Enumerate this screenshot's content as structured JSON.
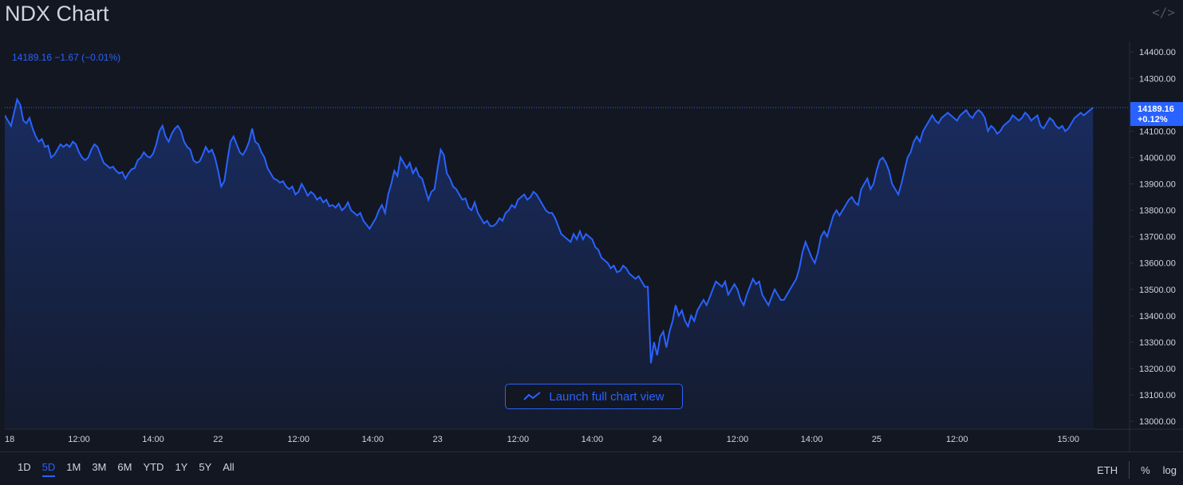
{
  "title": "NDX Chart",
  "embed_icon": "code-embed-icon",
  "legend_text": "14189.16 −1.67 (−0.01%)",
  "last_price": "14189.16",
  "last_change": "+0.12%",
  "launch_label": "Launch full chart view",
  "ranges": [
    "1D",
    "5D",
    "1M",
    "3M",
    "6M",
    "YTD",
    "1Y",
    "5Y",
    "All"
  ],
  "active_range": "5D",
  "right_options": {
    "eth": "ETH",
    "percent": "%",
    "log": "log"
  },
  "colors": {
    "line": "#2962ff",
    "background": "#131722",
    "grid": "#2a2e39",
    "text": "#d1d4dc"
  },
  "chart_data": {
    "type": "area",
    "yticks": [
      13000,
      13100,
      13200,
      13300,
      13400,
      13500,
      13600,
      13700,
      13800,
      13900,
      14000,
      14100,
      14200,
      14300,
      14400
    ],
    "yrange": [
      12970,
      14440
    ],
    "xticks": [
      {
        "label": "18",
        "i": 0
      },
      {
        "label": "12:00",
        "i": 24
      },
      {
        "label": "14:00",
        "i": 48
      },
      {
        "label": "22",
        "i": 69
      },
      {
        "label": "12:00",
        "i": 95
      },
      {
        "label": "14:00",
        "i": 119
      },
      {
        "label": "23",
        "i": 140
      },
      {
        "label": "12:00",
        "i": 166
      },
      {
        "label": "14:00",
        "i": 190
      },
      {
        "label": "24",
        "i": 211
      },
      {
        "label": "12:00",
        "i": 237
      },
      {
        "label": "14:00",
        "i": 261
      },
      {
        "label": "25",
        "i": 282
      },
      {
        "label": "12:00",
        "i": 308
      },
      {
        "label": "15:00",
        "i": 344
      }
    ],
    "x_count": 355,
    "values": [
      14160,
      14140,
      14120,
      14170,
      14220,
      14200,
      14140,
      14130,
      14150,
      14110,
      14080,
      14060,
      14070,
      14040,
      14045,
      14000,
      14010,
      14030,
      14050,
      14040,
      14050,
      14040,
      14060,
      14050,
      14020,
      14000,
      13990,
      14000,
      14030,
      14050,
      14040,
      14010,
      13980,
      13970,
      13960,
      13965,
      13950,
      13940,
      13945,
      13920,
      13940,
      13955,
      13960,
      13990,
      14000,
      14020,
      14005,
      14000,
      14015,
      14050,
      14100,
      14120,
      14080,
      14060,
      14090,
      14110,
      14120,
      14100,
      14060,
      14040,
      14030,
      13990,
      13980,
      13985,
      14010,
      14040,
      14020,
      14030,
      14000,
      13950,
      13890,
      13910,
      13990,
      14060,
      14080,
      14050,
      14020,
      14010,
      14030,
      14060,
      14110,
      14060,
      14050,
      14020,
      14000,
      13960,
      13940,
      13920,
      13915,
      13905,
      13910,
      13890,
      13880,
      13890,
      13860,
      13870,
      13900,
      13880,
      13855,
      13870,
      13860,
      13840,
      13850,
      13830,
      13840,
      13815,
      13820,
      13810,
      13825,
      13800,
      13810,
      13830,
      13800,
      13790,
      13780,
      13790,
      13760,
      13745,
      13730,
      13750,
      13770,
      13800,
      13820,
      13790,
      13860,
      13900,
      13950,
      13930,
      14000,
      13980,
      13960,
      13980,
      13940,
      13960,
      13930,
      13920,
      13880,
      13840,
      13870,
      13880,
      13960,
      14030,
      14010,
      13940,
      13920,
      13890,
      13880,
      13860,
      13840,
      13845,
      13810,
      13800,
      13830,
      13790,
      13770,
      13750,
      13760,
      13740,
      13740,
      13750,
      13770,
      13760,
      13790,
      13800,
      13820,
      13810,
      13840,
      13850,
      13860,
      13840,
      13850,
      13870,
      13860,
      13840,
      13820,
      13800,
      13790,
      13790,
      13770,
      13740,
      13710,
      13700,
      13690,
      13680,
      13710,
      13690,
      13720,
      13690,
      13710,
      13700,
      13690,
      13660,
      13650,
      13620,
      13610,
      13600,
      13580,
      13590,
      13565,
      13570,
      13590,
      13580,
      13560,
      13550,
      13540,
      13550,
      13530,
      13510,
      13510,
      13220,
      13300,
      13250,
      13320,
      13340,
      13280,
      13340,
      13380,
      13440,
      13400,
      13420,
      13380,
      13360,
      13400,
      13380,
      13420,
      13440,
      13460,
      13440,
      13470,
      13500,
      13530,
      13520,
      13510,
      13530,
      13480,
      13500,
      13520,
      13500,
      13460,
      13440,
      13480,
      13510,
      13540,
      13520,
      13530,
      13480,
      13460,
      13440,
      13470,
      13500,
      13480,
      13460,
      13460,
      13480,
      13500,
      13520,
      13540,
      13580,
      13640,
      13680,
      13650,
      13620,
      13600,
      13640,
      13700,
      13720,
      13700,
      13740,
      13780,
      13800,
      13780,
      13800,
      13820,
      13840,
      13850,
      13830,
      13820,
      13880,
      13900,
      13920,
      13880,
      13900,
      13950,
      13990,
      14000,
      13980,
      13950,
      13900,
      13880,
      13860,
      13900,
      13950,
      14000,
      14020,
      14060,
      14080,
      14060,
      14100,
      14120,
      14140,
      14160,
      14140,
      14130,
      14150,
      14160,
      14170,
      14160,
      14150,
      14140,
      14160,
      14170,
      14180,
      14160,
      14150,
      14170,
      14180,
      14170,
      14150,
      14100,
      14120,
      14110,
      14090,
      14100,
      14120,
      14130,
      14140,
      14160,
      14150,
      14140,
      14150,
      14170,
      14160,
      14140,
      14150,
      14160,
      14120,
      14110,
      14130,
      14150,
      14140,
      14120,
      14110,
      14120,
      14100,
      14110,
      14130,
      14150,
      14160,
      14170,
      14160,
      14170,
      14180,
      14189.16
    ]
  }
}
